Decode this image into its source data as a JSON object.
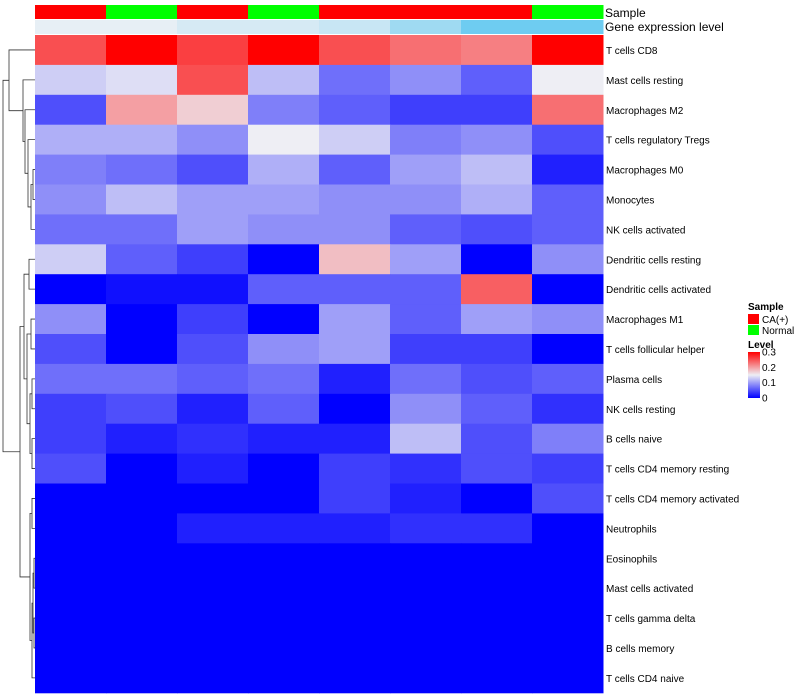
{
  "chart_data": {
    "type": "heatmap",
    "title": "",
    "annotation_labels": {
      "sample": "Sample",
      "gene_expression": "Gene expression level"
    },
    "column_count": 8,
    "sample_annotation": [
      "CA(+)",
      "Normal",
      "CA(+)",
      "Normal",
      "CA(+)",
      "CA(+)",
      "CA(+)",
      "Normal"
    ],
    "gene_expression_annotation": [
      0.03,
      0.03,
      0.15,
      0.15,
      0.25,
      0.55,
      0.9,
      0.9
    ],
    "rows": [
      "T cells CD8",
      "Mast cells resting",
      "Macrophages M2",
      "T cells regulatory  Tregs",
      "Macrophages M0",
      "Monocytes",
      "NK cells activated",
      "Dendritic cells resting",
      "Dendritic cells activated",
      "Macrophages M1",
      "T cells follicular helper",
      "Plasma cells",
      "NK cells resting",
      "B cells naive",
      "T cells CD4 memory resting",
      "T cells CD4 memory activated",
      "Neutrophils",
      "Eosinophils",
      "Mast cells activated",
      "T cells gamma delta",
      "B cells memory",
      "T cells CD4 naive"
    ],
    "values": [
      [
        0.25,
        0.3,
        0.26,
        0.3,
        0.25,
        0.23,
        0.22,
        0.3
      ],
      [
        0.13,
        0.14,
        0.25,
        0.12,
        0.07,
        0.09,
        0.06,
        0.15
      ],
      [
        0.05,
        0.2,
        0.17,
        0.08,
        0.06,
        0.04,
        0.04,
        0.23
      ],
      [
        0.11,
        0.11,
        0.09,
        0.15,
        0.13,
        0.08,
        0.09,
        0.05
      ],
      [
        0.08,
        0.07,
        0.05,
        0.11,
        0.06,
        0.1,
        0.12,
        0.02
      ],
      [
        0.09,
        0.12,
        0.1,
        0.1,
        0.09,
        0.09,
        0.11,
        0.06
      ],
      [
        0.07,
        0.07,
        0.1,
        0.09,
        0.09,
        0.06,
        0.05,
        0.06
      ],
      [
        0.13,
        0.06,
        0.04,
        0.0,
        0.18,
        0.1,
        0.0,
        0.09
      ],
      [
        0.0,
        0.01,
        0.01,
        0.06,
        0.06,
        0.06,
        0.24,
        0.0
      ],
      [
        0.09,
        0.0,
        0.04,
        0.0,
        0.1,
        0.06,
        0.1,
        0.09
      ],
      [
        0.05,
        0.0,
        0.05,
        0.09,
        0.1,
        0.04,
        0.04,
        0.0
      ],
      [
        0.07,
        0.07,
        0.06,
        0.07,
        0.02,
        0.07,
        0.05,
        0.06
      ],
      [
        0.04,
        0.05,
        0.02,
        0.06,
        0.0,
        0.09,
        0.06,
        0.03
      ],
      [
        0.04,
        0.02,
        0.03,
        0.02,
        0.02,
        0.12,
        0.05,
        0.08
      ],
      [
        0.05,
        0.0,
        0.02,
        0.0,
        0.04,
        0.03,
        0.05,
        0.04
      ],
      [
        0.0,
        0.0,
        0.0,
        0.0,
        0.04,
        0.02,
        0.0,
        0.05
      ],
      [
        0.0,
        0.0,
        0.02,
        0.02,
        0.02,
        0.03,
        0.03,
        0.0
      ],
      [
        0.0,
        0.0,
        0.0,
        0.0,
        0.0,
        0.0,
        0.0,
        0.0
      ],
      [
        0.0,
        0.0,
        0.0,
        0.0,
        0.0,
        0.0,
        0.0,
        0.0
      ],
      [
        0.0,
        0.0,
        0.0,
        0.0,
        0.0,
        0.0,
        0.0,
        0.0
      ],
      [
        0.0,
        0.0,
        0.0,
        0.0,
        0.0,
        0.0,
        0.0,
        0.0
      ],
      [
        0.0,
        0.0,
        0.0,
        0.0,
        0.0,
        0.0,
        0.0,
        0.0
      ]
    ],
    "color_scale": {
      "min": 0,
      "max": 0.3,
      "mid": 0.15,
      "low_color": "#0000ff",
      "mid_color": "#eeeef4",
      "high_color": "#ff0000"
    },
    "dendrogram": "rows",
    "legends": {
      "sample": {
        "title": "Sample",
        "entries": [
          {
            "label": "CA(+)",
            "color": "#ff0000"
          },
          {
            "label": "Normal",
            "color": "#00ff00"
          }
        ]
      },
      "level": {
        "title": "Level",
        "ticks": [
          "0.3",
          "0.2",
          "0.1",
          "0"
        ],
        "tick_values": [
          0.3,
          0.2,
          0.1,
          0
        ]
      }
    }
  }
}
